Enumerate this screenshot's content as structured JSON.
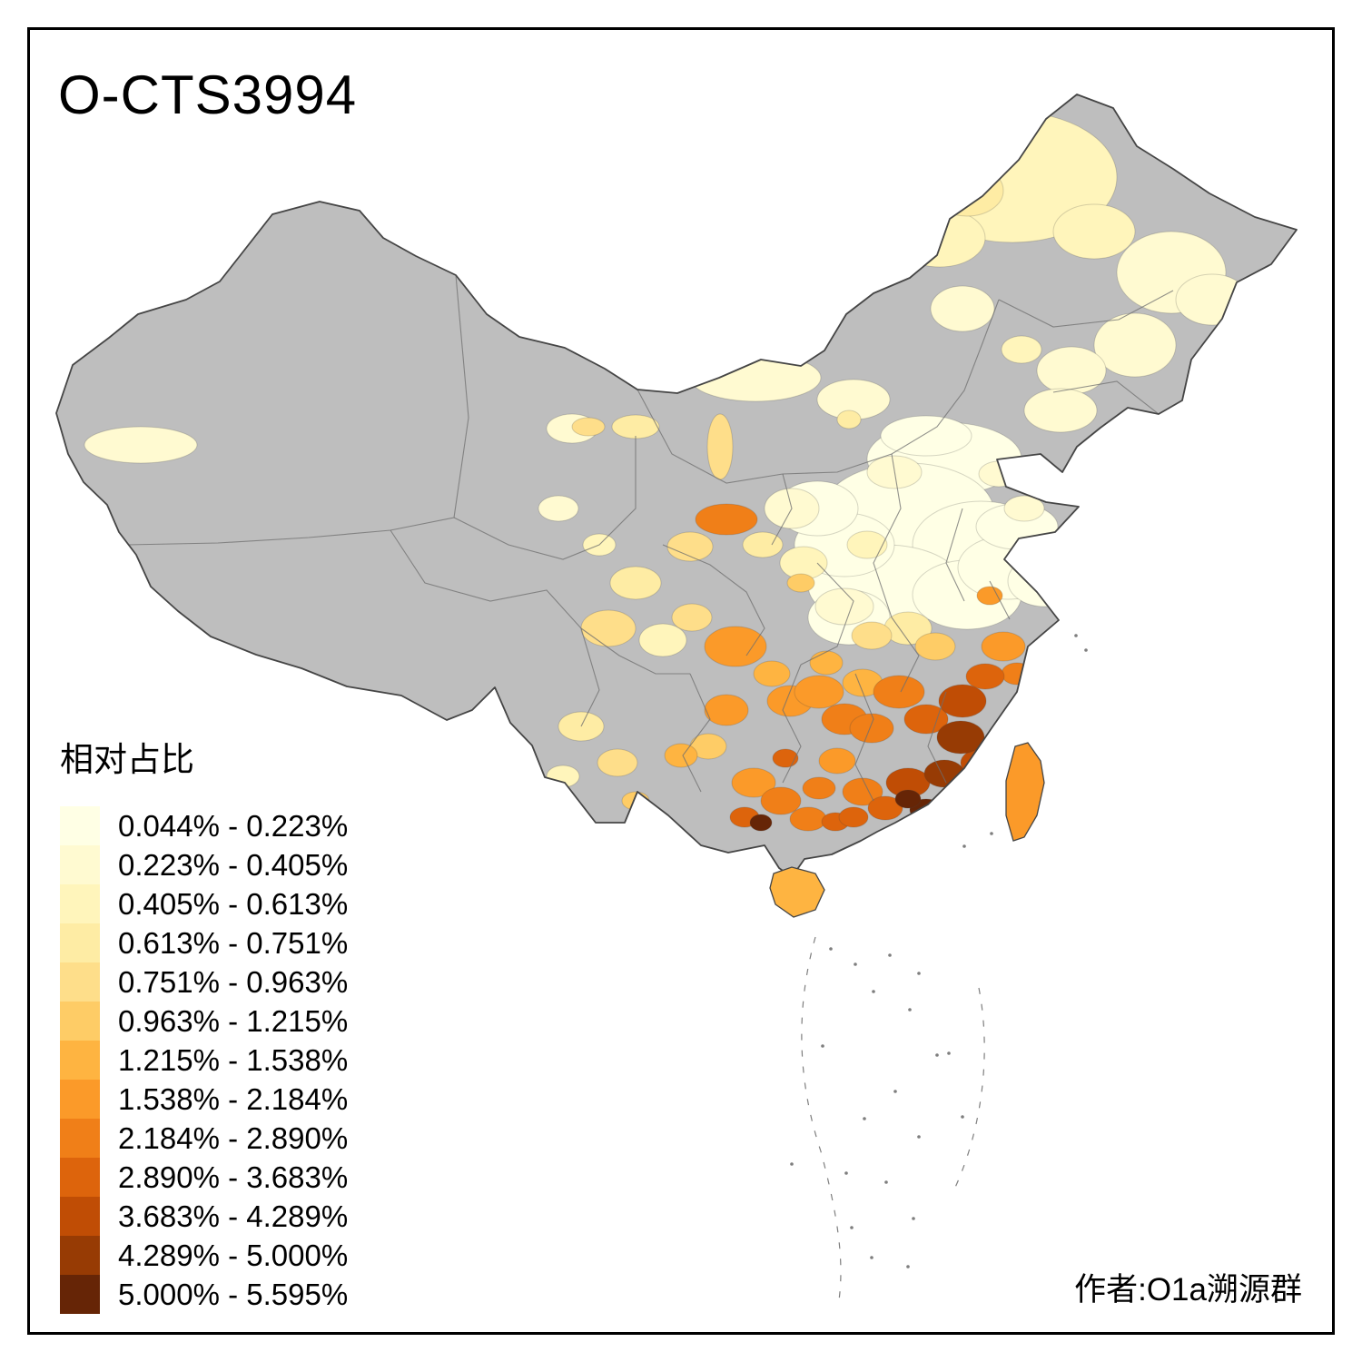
{
  "title": "O-CTS3994",
  "legend": {
    "title": "相对占比",
    "items": [
      {
        "label": "0.044% - 0.223%",
        "color": "#FFFFE5"
      },
      {
        "label": "0.223% - 0.405%",
        "color": "#FFFAD1"
      },
      {
        "label": "0.405% - 0.613%",
        "color": "#FFF5BB"
      },
      {
        "label": "0.613% - 0.751%",
        "color": "#FEECA4"
      },
      {
        "label": "0.751% - 0.963%",
        "color": "#FEDE8A"
      },
      {
        "label": "0.963% - 1.215%",
        "color": "#FECC66"
      },
      {
        "label": "1.215% - 1.538%",
        "color": "#FEB441"
      },
      {
        "label": "1.538% - 2.184%",
        "color": "#FB9A29"
      },
      {
        "label": "2.184% - 2.890%",
        "color": "#F07F18"
      },
      {
        "label": "2.890% - 3.683%",
        "color": "#DD640C"
      },
      {
        "label": "3.683% - 4.289%",
        "color": "#C04D05"
      },
      {
        "label": "4.289% - 5.000%",
        "color": "#973B04"
      },
      {
        "label": "5.000% - 5.595%",
        "color": "#662506"
      }
    ]
  },
  "author": "作者:O1a溯源群",
  "map": {
    "no_data_color": "#BEBEBE",
    "outline_color": "#454545",
    "inner_border_color": "#6E6E6E",
    "sea_mark_color": "#7E7E7E"
  }
}
